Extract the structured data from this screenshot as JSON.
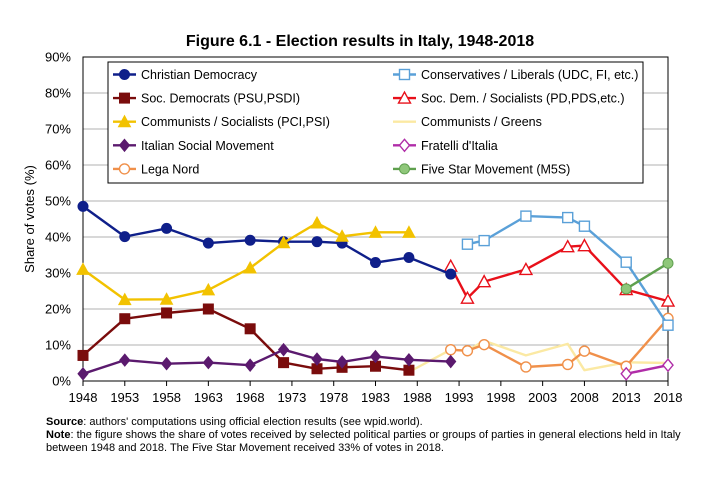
{
  "chart_data": {
    "type": "line",
    "title": "Figure 6.1 - Election results in Italy, 1948-2018",
    "xlabel": "",
    "ylabel": "Share of votes (%)",
    "xlim": [
      1948,
      2018
    ],
    "ylim": [
      0,
      90
    ],
    "grid": true,
    "legend_position": "top",
    "x_ticks": [
      "1948",
      "1953",
      "1958",
      "1963",
      "1968",
      "1973",
      "1978",
      "1983",
      "1988",
      "1993",
      "1998",
      "2003",
      "2008",
      "2013",
      "2018"
    ],
    "y_ticks": [
      "0%",
      "10%",
      "20%",
      "30%",
      "40%",
      "50%",
      "60%",
      "70%",
      "80%",
      "90%"
    ],
    "series": [
      {
        "name": "Christian Democracy",
        "color": "#0f1f8a",
        "marker": "circle-filled",
        "dash": "",
        "x": [
          1948,
          1953,
          1958,
          1963,
          1968,
          1972,
          1976,
          1979,
          1983,
          1987,
          1992
        ],
        "y": [
          48.5,
          40.1,
          42.4,
          38.3,
          39.1,
          38.7,
          38.7,
          38.3,
          32.9,
          34.3,
          29.7
        ]
      },
      {
        "name": "Soc. Democrats (PSU,PSDI)",
        "color": "#7a0c0c",
        "marker": "square-filled",
        "dash": "",
        "x": [
          1948,
          1953,
          1958,
          1963,
          1968,
          1972,
          1976,
          1979,
          1983,
          1987
        ],
        "y": [
          7.1,
          17.3,
          18.9,
          20.0,
          14.5,
          5.1,
          3.4,
          3.8,
          4.1,
          3.0
        ]
      },
      {
        "name": "Communists / Socialists (PCI,PSI)",
        "color": "#f2c200",
        "marker": "triangle-filled",
        "dash": "",
        "x": [
          1948,
          1953,
          1958,
          1963,
          1968,
          1972,
          1976,
          1979,
          1983,
          1987
        ],
        "y": [
          31.0,
          22.6,
          22.7,
          25.3,
          31.4,
          38.4,
          43.9,
          40.2,
          41.3,
          41.3
        ]
      },
      {
        "name": "Italian Social Movement",
        "color": "#5b1a6e",
        "marker": "diamond-filled",
        "dash": "",
        "x": [
          1948,
          1953,
          1958,
          1963,
          1968,
          1972,
          1976,
          1979,
          1983,
          1987,
          1992
        ],
        "y": [
          2.0,
          5.8,
          4.8,
          5.1,
          4.4,
          8.7,
          6.1,
          5.3,
          6.8,
          5.9,
          5.4
        ]
      },
      {
        "name": "Lega Nord",
        "color": "#f0904a",
        "marker": "circle-open",
        "dash": "",
        "x": [
          1992,
          1994,
          1996,
          2001,
          2006,
          2008,
          2013,
          2018
        ],
        "y": [
          8.7,
          8.4,
          10.1,
          3.9,
          4.6,
          8.3,
          4.1,
          17.4
        ]
      },
      {
        "name": "Conservatives / Liberals (UDC, FI, etc.)",
        "color": "#5aa0d8",
        "marker": "square-open",
        "dash": "",
        "x": [
          1994,
          1996,
          2001,
          2006,
          2008,
          2013,
          2018
        ],
        "y": [
          38.0,
          39.0,
          45.8,
          45.4,
          43.0,
          33.0,
          15.5
        ]
      },
      {
        "name": "Soc. Dem. / Socialists (PD,PDS,etc.)",
        "color": "#e8101a",
        "marker": "triangle-open",
        "dash": "",
        "x": [
          1992,
          1994,
          1996,
          2001,
          2006,
          2008,
          2013,
          2018
        ],
        "y": [
          31.9,
          23.0,
          27.6,
          31.0,
          37.3,
          37.6,
          25.4,
          22.2
        ]
      },
      {
        "name": "Communists / Greens",
        "color": "#fbe9a3",
        "marker": "none",
        "dash": "",
        "x": [
          1987,
          1992,
          1994,
          1996,
          2001,
          2006,
          2008,
          2013,
          2018
        ],
        "y": [
          2.5,
          8.7,
          8.4,
          11.2,
          7.1,
          10.3,
          3.0,
          5.2,
          5.0
        ]
      },
      {
        "name": "Fratelli d'Italia",
        "color": "#b02da8",
        "marker": "diamond-open",
        "dash": "",
        "x": [
          2013,
          2018
        ],
        "y": [
          2.0,
          4.4
        ]
      },
      {
        "name": "Five Star Movement (M5S)",
        "color": "#5fa04e",
        "marker": "circle-green",
        "dash": "",
        "x": [
          2013,
          2018
        ],
        "y": [
          25.6,
          32.7
        ]
      }
    ]
  },
  "footnote": {
    "source_label": "Source",
    "source_text": ": authors' computations using official election results (see wpid.world).",
    "note_label": "Note",
    "note_text": ": the figure shows the share of votes received by selected political parties or groups of parties in general elections held in Italy between 1948 and 2018. The Five Star Movement received 33% of votes in 2018."
  }
}
